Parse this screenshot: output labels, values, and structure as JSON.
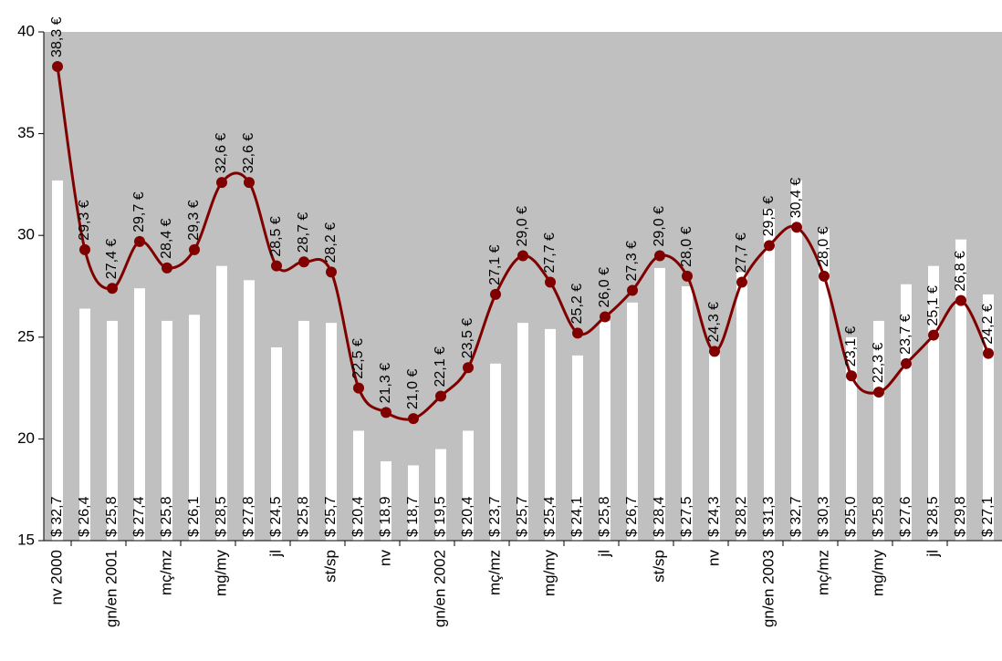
{
  "chart_data": {
    "type": "bar",
    "categories": [
      "nv 2000",
      null,
      "gn/en 2001",
      null,
      "mç/mz",
      null,
      "mg/my",
      null,
      "jl",
      null,
      "st/sp",
      null,
      "nv",
      null,
      "gn/en 2002",
      null,
      "mç/mz",
      null,
      "mg/my",
      null,
      "jl",
      null,
      "st/sp",
      null,
      "nv",
      null,
      "gn/en 2003",
      null,
      "mç/mz",
      null,
      "mg/my",
      null,
      "jl",
      null,
      null
    ],
    "series": [
      {
        "type": "bar",
        "color": "#ffffff",
        "values": [
          32.7,
          26.4,
          25.8,
          27.4,
          25.8,
          26.1,
          28.5,
          27.8,
          24.5,
          25.8,
          25.7,
          20.4,
          18.9,
          18.7,
          19.5,
          20.4,
          23.7,
          25.7,
          25.4,
          24.1,
          25.8,
          26.7,
          28.4,
          27.5,
          24.3,
          28.2,
          31.3,
          32.7,
          30.3,
          25.0,
          25.8,
          27.6,
          28.5,
          29.8,
          27.1
        ],
        "value_labels": [
          "$ 32,7",
          "$ 26,4",
          "$ 25,8",
          "$ 27,4",
          "$ 25,8",
          "$ 26,1",
          "$ 28,5",
          "$ 27,8",
          "$ 24,5",
          "$ 25,8",
          "$ 25,7",
          "$ 20,4",
          "$ 18,9",
          "$ 18,7",
          "$ 19,5",
          "$ 20,4",
          "$ 23,7",
          "$ 25,7",
          "$ 25,4",
          "$ 24,1",
          "$ 25,8",
          "$ 26,7",
          "$ 28,4",
          "$ 27,5",
          "$ 24,3",
          "$ 28,2",
          "$ 31,3",
          "$ 32,7",
          "$ 30,3",
          "$ 25,0",
          "$ 25,8",
          "$ 27,6",
          "$ 28,5",
          "$ 29,8",
          "$ 27,1"
        ]
      },
      {
        "type": "line",
        "color": "#800000",
        "values": [
          38.3,
          29.3,
          27.4,
          29.7,
          28.4,
          29.3,
          32.6,
          32.6,
          28.5,
          28.7,
          28.2,
          22.5,
          21.3,
          21.0,
          22.1,
          23.5,
          27.1,
          29.0,
          27.7,
          25.2,
          26.0,
          27.3,
          29.0,
          28.0,
          24.3,
          27.7,
          29.5,
          30.4,
          28.0,
          23.1,
          22.3,
          23.7,
          25.1,
          26.8,
          24.2
        ],
        "value_labels": [
          "38,3 €",
          "29,3 €",
          "27,4 €",
          "29,7 €",
          "28,4 €",
          "29,3 €",
          "32,6 €",
          "32,6 €",
          "28,5 €",
          "28,7 €",
          "28,2 €",
          "22,5 €",
          "21,3 €",
          "21,0 €",
          "22,1 €",
          "23,5 €",
          "27,1 €",
          "29,0 €",
          "27,7 €",
          "25,2 €",
          "26,0 €",
          "27,3 €",
          "29,0 €",
          "28,0 €",
          "24,3 €",
          "27,7 €",
          "29,5 €",
          "30,4 €",
          "28,0 €",
          "23,1 €",
          "22,3 €",
          "23,7 €",
          "25,1 €",
          "26,8 €",
          "24,2 €"
        ]
      }
    ],
    "ylim": [
      15,
      40
    ],
    "yticks": [
      15,
      20,
      25,
      30,
      35,
      40
    ],
    "background": "#c0c0c0"
  }
}
